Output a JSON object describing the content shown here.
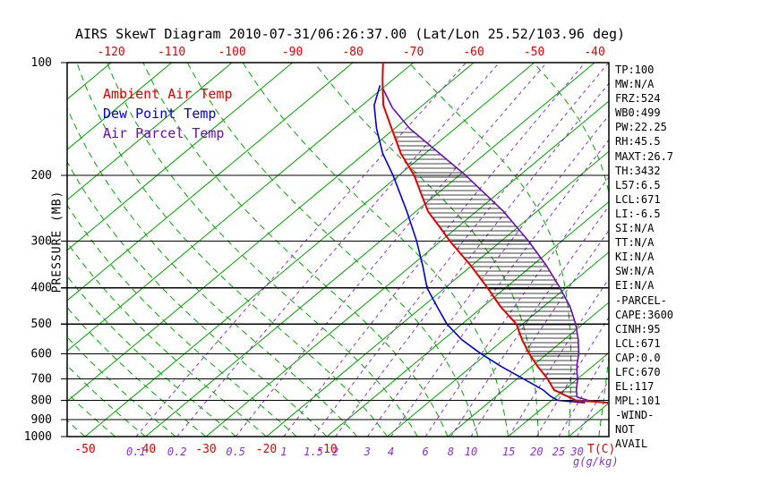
{
  "title": "AIRS SkewT Diagram 2010-07-31/06:26:37.00 (Lat/Lon 25.52/103.96 deg)",
  "legend": [
    {
      "label": "Ambient Air Temp",
      "color": "#e10000"
    },
    {
      "label": "Dew Point Temp",
      "color": "#0000cd"
    },
    {
      "label": "Air Parcel Temp",
      "color": "#6a0dad"
    }
  ],
  "axes": {
    "pressure_label": "PRESSURE (MB)",
    "pressure_ticks": [
      100,
      200,
      300,
      400,
      500,
      600,
      700,
      800,
      900,
      1000
    ],
    "top_temp_ticks": [
      -120,
      -110,
      -100,
      -90,
      -80,
      -70,
      -60,
      -50,
      -40
    ],
    "bottom_temp_ticks": [
      -50,
      -40,
      -30,
      -20,
      -10
    ],
    "temp_unit_label": "T(C)",
    "mixing_ratio_ticks": [
      0.1,
      0.2,
      0.5,
      1,
      1.5,
      2,
      3,
      4,
      6,
      8,
      10,
      15,
      20,
      25,
      30
    ],
    "mixing_unit_label": "g(g/kg)"
  },
  "stats_panel": [
    "TP:100",
    "MW:N/A",
    "FRZ:524",
    "WB0:499",
    "PW:22.25",
    "RH:45.5",
    "MAXT:26.7",
    "TH:3432",
    "L57:6.5",
    "LCL:671",
    "LI:-6.5",
    "SI:N/A",
    "TT:N/A",
    "KI:N/A",
    "SW:N/A",
    "EI:N/A",
    "-PARCEL-",
    "CAPE:3600",
    "CINH:95",
    "LCL:671",
    "CAP:0.0",
    "LFC:670",
    "EL:117",
    "MPL:101",
    "-WIND-",
    "NOT",
    "AVAIL"
  ],
  "chart_data": {
    "type": "line",
    "variant": "skew-t-log-p",
    "title": "AIRS SkewT Diagram 2010-07-31/06:26:37.00 (Lat/Lon 25.52/103.96 deg)",
    "ylabel": "PRESSURE (MB)",
    "xlabel": "T(C)",
    "x2label": "g(g/kg)",
    "pressure_range_mb": [
      100,
      1000
    ],
    "grid": true,
    "legend_position": "upper-left-inside",
    "series": [
      {
        "name": "Ambient Air Temp",
        "data_name": "ambient-temp-curve",
        "color": "#e10000",
        "width": 2.0,
        "points_p_t": [
          [
            100,
            -75
          ],
          [
            110,
            -72
          ],
          [
            117,
            -70
          ],
          [
            130,
            -66.5
          ],
          [
            150,
            -60.5
          ],
          [
            175,
            -54
          ],
          [
            200,
            -47.5
          ],
          [
            225,
            -42.5
          ],
          [
            250,
            -38
          ],
          [
            275,
            -33
          ],
          [
            300,
            -28.5
          ],
          [
            350,
            -20
          ],
          [
            400,
            -13
          ],
          [
            450,
            -7
          ],
          [
            500,
            -1
          ],
          [
            550,
            3
          ],
          [
            600,
            7
          ],
          [
            650,
            11
          ],
          [
            700,
            15
          ],
          [
            750,
            18.3
          ],
          [
            800,
            24
          ],
          [
            812,
            30
          ]
        ]
      },
      {
        "name": "Dew Point Temp",
        "data_name": "dew-point-curve",
        "color": "#0000cd",
        "width": 1.6,
        "points_p_t": [
          [
            115,
            -71
          ],
          [
            130,
            -68
          ],
          [
            150,
            -63
          ],
          [
            175,
            -57
          ],
          [
            200,
            -51
          ],
          [
            250,
            -41.5
          ],
          [
            300,
            -34
          ],
          [
            350,
            -28
          ],
          [
            400,
            -23
          ],
          [
            450,
            -17.5
          ],
          [
            500,
            -12.5
          ],
          [
            550,
            -7
          ],
          [
            600,
            -1
          ],
          [
            650,
            5
          ],
          [
            700,
            11
          ],
          [
            750,
            16.5
          ],
          [
            780,
            19
          ],
          [
            800,
            21
          ],
          [
            812,
            26
          ]
        ]
      },
      {
        "name": "Air Parcel Temp",
        "data_name": "parcel-temp-curve",
        "color": "#6a0dad",
        "width": 1.6,
        "points_p_t": [
          [
            117,
            -70
          ],
          [
            132,
            -64.5
          ],
          [
            150,
            -57.5
          ],
          [
            200,
            -39
          ],
          [
            250,
            -25.5
          ],
          [
            300,
            -15.5
          ],
          [
            350,
            -7.5
          ],
          [
            400,
            -1
          ],
          [
            450,
            4.5
          ],
          [
            500,
            8.8
          ],
          [
            550,
            12.3
          ],
          [
            600,
            15.2
          ],
          [
            640,
            17
          ],
          [
            671,
            18.5
          ],
          [
            700,
            20
          ],
          [
            750,
            22
          ],
          [
            783,
            23.5
          ],
          [
            800,
            26
          ],
          [
            812,
            30
          ]
        ]
      }
    ],
    "background": {
      "isotherm_step_c": 10,
      "isotherm_range_c": [
        -130,
        40
      ],
      "isotherm_color": "#00a400",
      "moist_adiabat_starts_c": [
        -50,
        -45,
        -40,
        -35,
        -30,
        -25,
        -20,
        -15,
        -10,
        -5,
        0,
        5,
        10,
        15,
        20,
        25,
        30,
        35,
        40,
        45,
        50
      ],
      "moist_adiabat_color": "#00a400",
      "mixing_ratio_lines_g_kg": [
        0.1,
        0.2,
        0.5,
        1,
        1.5,
        2,
        3,
        4,
        6,
        8,
        10,
        15,
        20,
        25,
        30
      ],
      "mixing_ratio_color": "#8833cc",
      "cape_hatch": true,
      "hatch_color": "#000000"
    }
  }
}
